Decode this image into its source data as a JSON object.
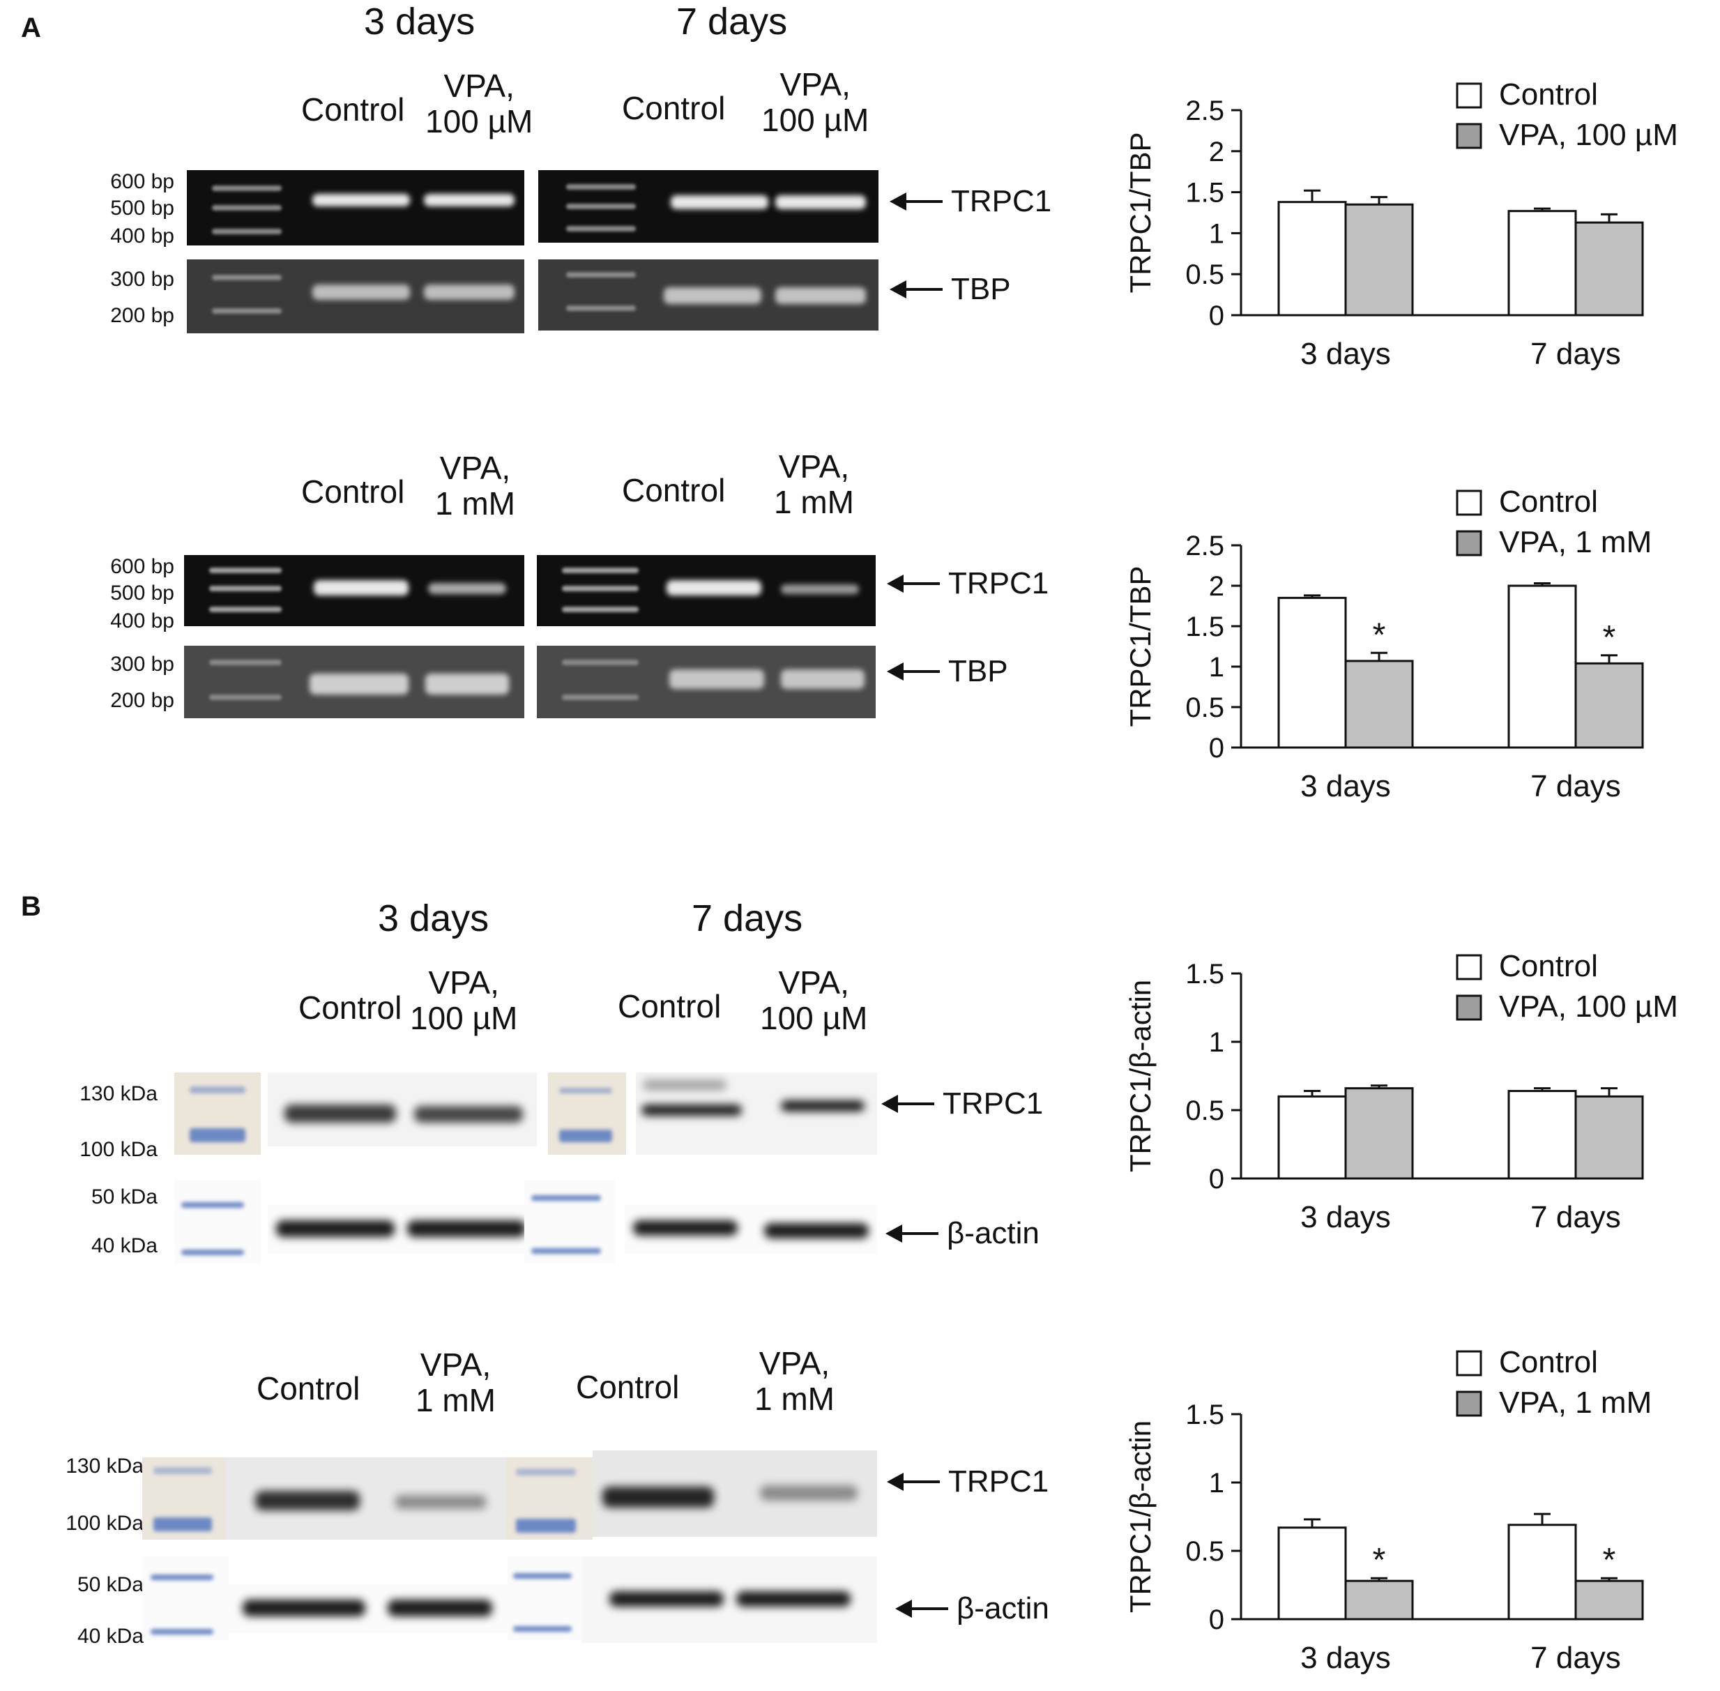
{
  "panelA": {
    "label": "A",
    "top": {
      "day3": "3 days",
      "day7": "7 days",
      "control": "Control",
      "vpa_line1": "VPA,",
      "vpa_line2": "100 µM",
      "markers": [
        "600 bp",
        "500 bp",
        "400 bp",
        "300 bp",
        "200 bp"
      ],
      "band1": "TRPC1",
      "band2": "TBP"
    },
    "bottom": {
      "control": "Control",
      "vpa_line1": "VPA,",
      "vpa_line2": "1 mM",
      "markers": [
        "600 bp",
        "500 bp",
        "400 bp",
        "300 bp",
        "200 bp"
      ],
      "band1": "TRPC1",
      "band2": "TBP"
    }
  },
  "panelB": {
    "label": "B",
    "top": {
      "day3": "3 days",
      "day7": "7 days",
      "control": "Control",
      "vpa_line1": "VPA,",
      "vpa_line2": "100 µM",
      "markers": [
        "130 kDa",
        "100 kDa",
        "50 kDa",
        "40 kDa"
      ],
      "band1": "TRPC1",
      "band2": "β-actin"
    },
    "bottom": {
      "control": "Control",
      "vpa_line1": "VPA,",
      "vpa_line2": "1 mM",
      "markers": [
        "130 kDa",
        "100 kDa",
        "50 kDa",
        "40 kDa"
      ],
      "band1": "TRPC1",
      "band2": "β-actin"
    }
  },
  "chart_data": [
    {
      "type": "bar",
      "ylabel": "TRPC1/TBP",
      "categories": [
        "3 days",
        "7 days"
      ],
      "ylim": [
        0,
        2.5
      ],
      "yticks": [
        "0",
        "0.5",
        "1",
        "1.5",
        "2",
        "2.5"
      ],
      "series": [
        {
          "name": "Control",
          "values": [
            1.38,
            1.27
          ],
          "errors": [
            0.14,
            0.03
          ],
          "color": "#ffffff"
        },
        {
          "name": "VPA, 100 µM",
          "values": [
            1.35,
            1.13
          ],
          "errors": [
            0.09,
            0.1
          ],
          "color": "#c0c0c0"
        }
      ],
      "significance": [
        "",
        ""
      ]
    },
    {
      "type": "bar",
      "ylabel": "TRPC1/TBP",
      "categories": [
        "3 days",
        "7 days"
      ],
      "ylim": [
        0,
        2.5
      ],
      "yticks": [
        "0",
        "0.5",
        "1",
        "1.5",
        "2",
        "2.5"
      ],
      "series": [
        {
          "name": "Control",
          "values": [
            1.85,
            2.0
          ],
          "errors": [
            0.03,
            0.03
          ],
          "color": "#ffffff"
        },
        {
          "name": "VPA, 1 mM",
          "values": [
            1.07,
            1.04
          ],
          "errors": [
            0.1,
            0.1
          ],
          "color": "#c0c0c0"
        }
      ],
      "significance": [
        "*",
        "*"
      ]
    },
    {
      "type": "bar",
      "ylabel": "TRPC1/β-actin",
      "categories": [
        "3 days",
        "7 days"
      ],
      "ylim": [
        0,
        1.5
      ],
      "yticks": [
        "0",
        "0.5",
        "1",
        "1.5"
      ],
      "series": [
        {
          "name": "Control",
          "values": [
            0.6,
            0.64
          ],
          "errors": [
            0.04,
            0.02
          ],
          "color": "#ffffff"
        },
        {
          "name": "VPA, 100 µM",
          "values": [
            0.66,
            0.6
          ],
          "errors": [
            0.02,
            0.06
          ],
          "color": "#c0c0c0"
        }
      ],
      "significance": [
        "",
        ""
      ]
    },
    {
      "type": "bar",
      "ylabel": "TRPC1/β-actin",
      "categories": [
        "3 days",
        "7 days"
      ],
      "ylim": [
        0,
        1.5
      ],
      "yticks": [
        "0",
        "0.5",
        "1",
        "1.5"
      ],
      "series": [
        {
          "name": "Control",
          "values": [
            0.67,
            0.69
          ],
          "errors": [
            0.06,
            0.08
          ],
          "color": "#ffffff"
        },
        {
          "name": "VPA, 1 mM",
          "values": [
            0.28,
            0.28
          ],
          "errors": [
            0.02,
            0.02
          ],
          "color": "#c0c0c0"
        }
      ],
      "significance": [
        "*",
        "*"
      ]
    }
  ]
}
